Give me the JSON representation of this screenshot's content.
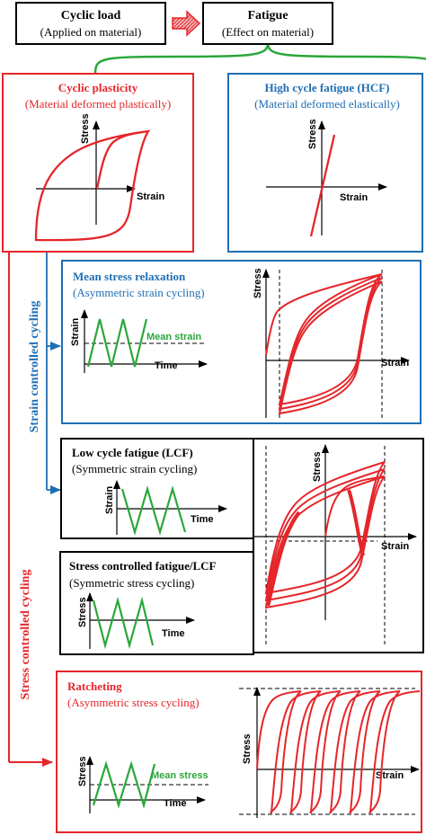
{
  "top": {
    "cyclic_load": {
      "title": "Cyclic load",
      "subtitle": "(Applied on material)"
    },
    "fatigue": {
      "title": "Fatigue",
      "subtitle": "(Effect on material)"
    }
  },
  "cyclic_plasticity": {
    "title": "Cyclic plasticity",
    "subtitle": "(Material deformed plastically)",
    "ylabel": "Stress",
    "xlabel": "Strain"
  },
  "hcf": {
    "title": "High cycle fatigue (HCF)",
    "subtitle": "(Material deformed elastically)",
    "ylabel": "Stress",
    "xlabel": "Strain"
  },
  "side_labels": {
    "strain": "Strain controlled cycling",
    "stress": "Stress controlled cycling"
  },
  "mean_stress_relaxation": {
    "title": "Mean stress relaxation",
    "subtitle": "(Asymmetric strain cycling)",
    "wave_ylabel": "Strain",
    "wave_xlabel": "Time",
    "mean_label": "Mean strain",
    "ylabel": "Stress",
    "xlabel": "Strain"
  },
  "lcf": {
    "title": "Low cycle fatigue (LCF)",
    "subtitle": "(Symmetric strain cycling)",
    "wave_ylabel": "Strain",
    "wave_xlabel": "Time"
  },
  "shared_loop": {
    "ylabel": "Stress",
    "xlabel": "Strain"
  },
  "stress_lcf": {
    "title": "Stress controlled fatigue/LCF",
    "subtitle": "(Symmetric stress cycling)",
    "wave_ylabel": "Stress",
    "wave_xlabel": "Time"
  },
  "ratcheting": {
    "title": "Ratcheting",
    "subtitle": "(Asymmetric stress cycling)",
    "wave_ylabel": "Stress",
    "wave_xlabel": "Time",
    "mean_label": "Mean stress",
    "ylabel": "Stress",
    "xlabel": "Strain"
  },
  "colors": {
    "black": "#000000",
    "red": "#e5262b",
    "blue": "#1f6eb4",
    "green": "#2aa73a"
  }
}
